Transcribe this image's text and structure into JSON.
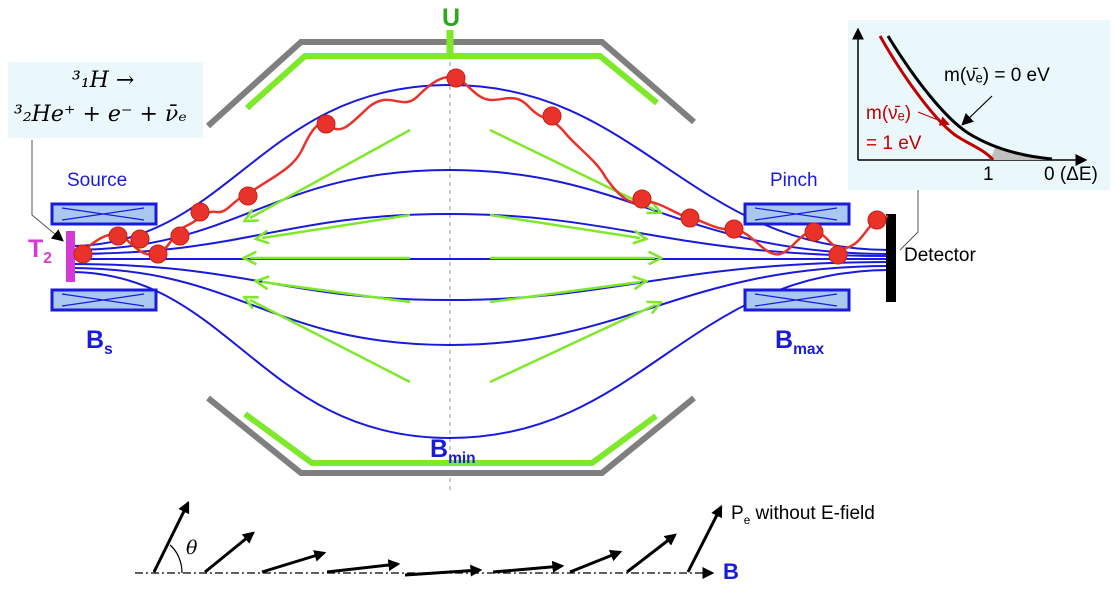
{
  "labels": {
    "potential": "U",
    "source": "Source",
    "pinch": "Pinch",
    "tritium_main": "T",
    "tritium_sub": "2",
    "detector": "Detector",
    "b_source_main": "B",
    "b_source_sub": "s",
    "b_max_main": "B",
    "b_max_sub": "max",
    "b_min_main": "B",
    "b_min_sub": "min",
    "momentum_main": "P",
    "momentum_sub": "e",
    "momentum_rest": " without E-field",
    "field_axis": "B",
    "angle": "θ"
  },
  "decay_equation": {
    "line1": "³₁H →",
    "line2": "³₂He⁺ + e⁻ + ν̄ₑ"
  },
  "inset_spectrum": {
    "curve_zero_mass": "m(ν̄ₑ) = 0 eV",
    "curve_one_ev_line1": "m(ν̄ₑ)",
    "curve_one_ev_line2": "= 1 eV",
    "tick_one": "1",
    "tick_zero": "0 (ΔE)"
  },
  "colors": {
    "field_lines": "#1a1adc",
    "electrodes_inner": "#7ee82a",
    "electrodes_outer": "#7f7f7f",
    "electron_track": "#e8322a",
    "source_tritium": "#d63ad6",
    "potential_label": "#2aaa1a",
    "inset_zero_mass": "#000000",
    "inset_one_ev": "#c00000"
  }
}
